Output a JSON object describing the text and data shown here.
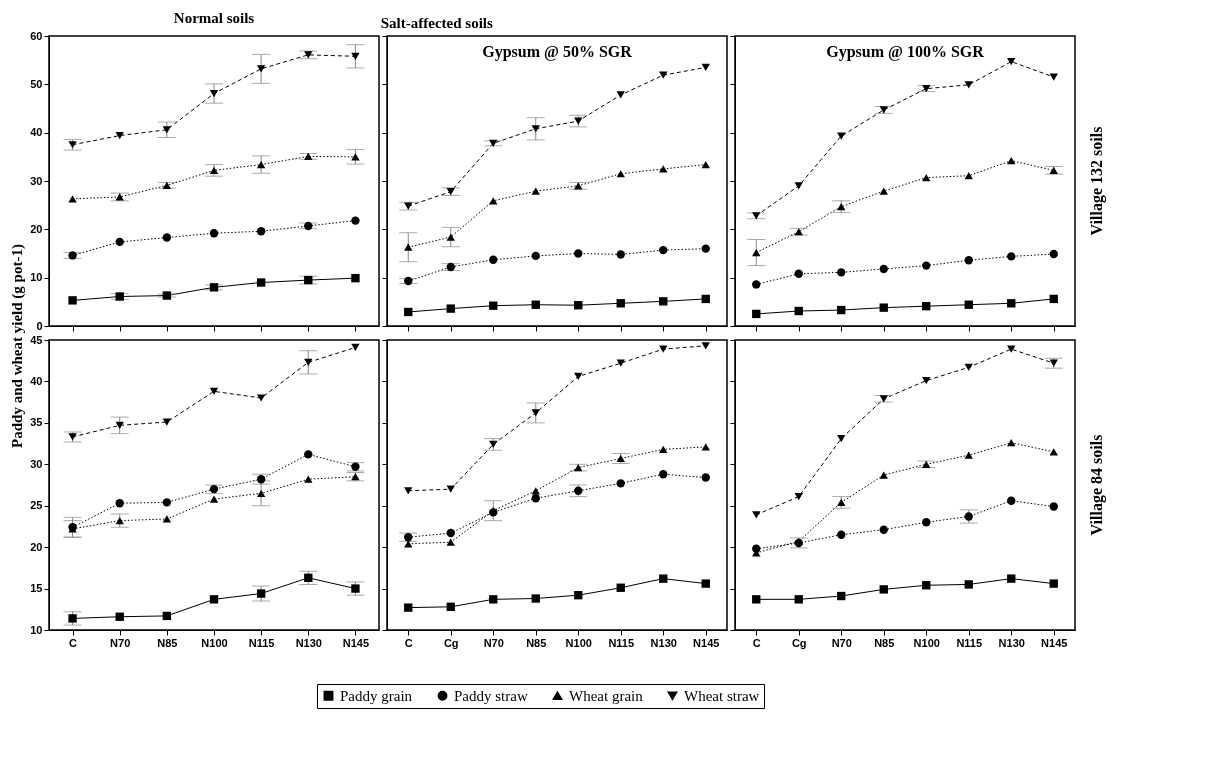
{
  "chart_data": [
    {
      "type": "line",
      "legend": "bottom",
      "title": "Normal soils",
      "ylabel": "Paddy and wheat yield (g pot-1)",
      "categories": [
        "C",
        "N70",
        "N85",
        "N100",
        "N115",
        "N130",
        "N145"
      ],
      "ylim": [
        0,
        60
      ],
      "yticks": [
        0,
        10,
        20,
        30,
        40,
        50,
        60
      ],
      "tick_labels": "y",
      "grid": false,
      "series": [
        {
          "name": "Paddy grain",
          "color": "#000000",
          "marker": "square",
          "line_style": "solid",
          "values": [
            5.3,
            6.1,
            6.3,
            8.0,
            9.0,
            9.5,
            9.9
          ],
          "errors": [
            null,
            0.6,
            0.3,
            0.5,
            null,
            0.8,
            null
          ]
        },
        {
          "name": "Paddy straw",
          "color": "#000000",
          "marker": "circle",
          "line_style": "dotted",
          "values": [
            14.6,
            17.4,
            18.3,
            19.2,
            19.6,
            20.7,
            21.8
          ],
          "errors": [
            0.6,
            null,
            null,
            null,
            null,
            0.6,
            null
          ]
        },
        {
          "name": "Wheat grain",
          "color": "#000000",
          "marker": "triangle",
          "line_style": "dotted",
          "values": [
            26.3,
            26.7,
            29.1,
            32.2,
            33.4,
            35.1,
            35.0
          ],
          "errors": [
            null,
            0.8,
            0.6,
            1.2,
            1.8,
            0.6,
            1.5
          ]
        },
        {
          "name": "Wheat straw",
          "color": "#000000",
          "marker": "triangle-down",
          "line_style": "dashed",
          "values": [
            37.5,
            39.4,
            40.6,
            48.1,
            53.2,
            56.1,
            55.8
          ],
          "errors": [
            1.1,
            null,
            1.6,
            2.0,
            3.0,
            0.8,
            2.4
          ]
        }
      ]
    },
    {
      "type": "line",
      "legend": "bottom",
      "title": "Salt-affected soils",
      "subtitle": "Gypsum @ 50% SGR",
      "categories": [
        "C",
        "Cg",
        "N70",
        "N85",
        "N100",
        "N115",
        "N130",
        "N145"
      ],
      "ylim": [
        0,
        60
      ],
      "yticks": [
        0,
        10,
        20,
        30,
        40,
        50,
        60
      ],
      "tick_labels": false,
      "grid": false,
      "series": [
        {
          "name": "Paddy grain",
          "color": "#000000",
          "marker": "square",
          "line_style": "solid",
          "values": [
            2.9,
            3.6,
            4.2,
            4.4,
            4.3,
            4.7,
            5.1,
            5.6
          ]
        },
        {
          "name": "Paddy straw",
          "color": "#000000",
          "marker": "circle",
          "line_style": "dotted",
          "values": [
            9.3,
            12.2,
            13.7,
            14.5,
            15.0,
            14.8,
            15.7,
            16.0
          ],
          "errors": [
            0.5,
            0.7,
            null,
            null,
            null,
            null,
            null,
            null
          ]
        },
        {
          "name": "Wheat grain",
          "color": "#000000",
          "marker": "triangle",
          "line_style": "dotted",
          "values": [
            16.3,
            18.4,
            25.9,
            27.9,
            29.0,
            31.5,
            32.5,
            33.4
          ],
          "errors": [
            3.0,
            2.0,
            null,
            null,
            0.7,
            null,
            null,
            null
          ]
        },
        {
          "name": "Wheat straw",
          "color": "#000000",
          "marker": "triangle-down",
          "line_style": "dashed",
          "values": [
            24.8,
            27.8,
            37.8,
            40.8,
            42.4,
            47.8,
            51.9,
            53.5
          ],
          "errors": [
            0.8,
            0.8,
            0.5,
            2.3,
            1.2,
            null,
            null,
            null
          ]
        }
      ]
    },
    {
      "type": "line",
      "legend": "bottom",
      "subtitle": "Gypsum @ 100% SGR",
      "annotations": [
        "Village 132 soils"
      ],
      "categories": [
        "C",
        "Cg",
        "N70",
        "N85",
        "N100",
        "N115",
        "N130",
        "N145"
      ],
      "ylim": [
        0,
        60
      ],
      "yticks": [
        0,
        10,
        20,
        30,
        40,
        50,
        60
      ],
      "tick_labels": false,
      "grid": false,
      "series": [
        {
          "name": "Paddy grain",
          "color": "#000000",
          "marker": "square",
          "line_style": "solid",
          "values": [
            2.5,
            3.1,
            3.3,
            3.8,
            4.1,
            4.4,
            4.7,
            5.6
          ]
        },
        {
          "name": "Paddy straw",
          "color": "#000000",
          "marker": "circle",
          "line_style": "dotted",
          "values": [
            8.6,
            10.8,
            11.1,
            11.8,
            12.5,
            13.6,
            14.4,
            14.9
          ]
        },
        {
          "name": "Wheat grain",
          "color": "#000000",
          "marker": "triangle",
          "line_style": "dotted",
          "values": [
            15.2,
            19.5,
            24.7,
            27.9,
            30.7,
            31.1,
            34.2,
            32.2
          ],
          "errors": [
            2.7,
            0.7,
            1.2,
            null,
            null,
            null,
            null,
            0.8
          ]
        },
        {
          "name": "Wheat straw",
          "color": "#000000",
          "marker": "triangle-down",
          "line_style": "dashed",
          "values": [
            22.8,
            29.0,
            39.3,
            44.7,
            49.1,
            49.9,
            54.7,
            51.5
          ],
          "errors": [
            0.6,
            null,
            null,
            0.7,
            0.6,
            null,
            null,
            null
          ]
        }
      ]
    },
    {
      "type": "line",
      "legend": "bottom",
      "categories": [
        "C",
        "N70",
        "N85",
        "N100",
        "N115",
        "N130",
        "N145"
      ],
      "ylim": [
        10,
        45
      ],
      "yticks": [
        10,
        15,
        20,
        25,
        30,
        35,
        40,
        45
      ],
      "grid": false,
      "series": [
        {
          "name": "Paddy grain",
          "color": "#000000",
          "marker": "square",
          "line_style": "solid",
          "values": [
            11.4,
            11.6,
            11.7,
            13.7,
            14.4,
            16.3,
            15.0
          ],
          "errors": [
            0.8,
            null,
            null,
            null,
            0.9,
            0.8,
            0.8
          ]
        },
        {
          "name": "Paddy straw",
          "color": "#000000",
          "marker": "circle",
          "line_style": "dotted",
          "values": [
            22.4,
            25.3,
            25.4,
            27.0,
            28.2,
            31.2,
            29.7
          ],
          "errors": [
            1.2,
            null,
            null,
            0.5,
            0.6,
            null,
            0.5
          ]
        },
        {
          "name": "Wheat grain",
          "color": "#000000",
          "marker": "triangle",
          "line_style": "dotted",
          "values": [
            22.2,
            23.2,
            23.4,
            25.8,
            26.5,
            28.2,
            28.5
          ],
          "errors": [
            1.0,
            0.8,
            null,
            null,
            1.5,
            null,
            0.5
          ]
        },
        {
          "name": "Wheat straw",
          "color": "#000000",
          "marker": "triangle-down",
          "line_style": "dashed",
          "values": [
            33.3,
            34.7,
            35.1,
            38.8,
            38.0,
            42.3,
            44.1
          ],
          "errors": [
            0.6,
            1.0,
            null,
            null,
            null,
            1.4,
            null
          ]
        }
      ]
    },
    {
      "type": "line",
      "legend": "bottom",
      "categories": [
        "C",
        "Cg",
        "N70",
        "N85",
        "N100",
        "N115",
        "N130",
        "N145"
      ],
      "ylim": [
        10,
        45
      ],
      "yticks": [
        10,
        15,
        20,
        25,
        30,
        35,
        40,
        45
      ],
      "tick_labels": "x",
      "grid": false,
      "series": [
        {
          "name": "Paddy grain",
          "color": "#000000",
          "marker": "square",
          "line_style": "solid",
          "values": [
            12.7,
            12.8,
            13.7,
            13.8,
            14.2,
            15.1,
            16.2,
            15.6
          ]
        },
        {
          "name": "Paddy straw",
          "color": "#000000",
          "marker": "circle",
          "line_style": "dotted",
          "values": [
            21.2,
            21.7,
            24.2,
            25.9,
            26.8,
            27.7,
            28.8,
            28.4
          ],
          "errors": [
            0.5,
            null,
            null,
            null,
            0.7,
            null,
            null,
            null
          ]
        },
        {
          "name": "Wheat grain",
          "color": "#000000",
          "marker": "triangle",
          "line_style": "dotted",
          "values": [
            20.4,
            20.6,
            24.4,
            26.8,
            29.6,
            30.7,
            31.8,
            32.1
          ],
          "errors": [
            null,
            null,
            1.2,
            null,
            0.4,
            0.6,
            null,
            null
          ]
        },
        {
          "name": "Wheat straw",
          "color": "#000000",
          "marker": "triangle-down",
          "line_style": "dashed",
          "values": [
            26.8,
            27.0,
            32.4,
            36.2,
            40.6,
            42.2,
            43.9,
            44.3
          ],
          "errors": [
            null,
            null,
            0.7,
            1.2,
            null,
            null,
            null,
            null
          ]
        }
      ]
    },
    {
      "type": "line",
      "legend": "bottom",
      "annotations": [
        "Village 84 soils"
      ],
      "categories": [
        "C",
        "Cg",
        "N70",
        "N85",
        "N100",
        "N115",
        "N130",
        "N145"
      ],
      "ylim": [
        10,
        45
      ],
      "yticks": [
        10,
        15,
        20,
        25,
        30,
        35,
        40,
        45
      ],
      "tick_labels": "x",
      "grid": false,
      "series": [
        {
          "name": "Paddy grain",
          "color": "#000000",
          "marker": "square",
          "line_style": "solid",
          "values": [
            13.7,
            13.7,
            14.1,
            14.9,
            15.4,
            15.5,
            16.2,
            15.6
          ]
        },
        {
          "name": "Paddy straw",
          "color": "#000000",
          "marker": "circle",
          "line_style": "dotted",
          "values": [
            19.8,
            20.5,
            21.5,
            22.1,
            23.0,
            23.7,
            25.6,
            24.9
          ],
          "errors": [
            null,
            0.6,
            null,
            null,
            null,
            0.8,
            null,
            null
          ]
        },
        {
          "name": "Wheat grain",
          "color": "#000000",
          "marker": "triangle",
          "line_style": "dotted",
          "values": [
            19.3,
            20.7,
            25.4,
            28.7,
            30.0,
            31.1,
            32.6,
            31.5
          ],
          "errors": [
            null,
            null,
            0.7,
            null,
            0.4,
            null,
            null,
            null
          ]
        },
        {
          "name": "Wheat straw",
          "color": "#000000",
          "marker": "triangle-down",
          "line_style": "dashed",
          "values": [
            23.9,
            26.1,
            33.1,
            37.9,
            40.1,
            41.7,
            43.9,
            42.2
          ],
          "errors": [
            null,
            null,
            null,
            0.4,
            null,
            null,
            null,
            0.6
          ]
        }
      ]
    }
  ]
}
